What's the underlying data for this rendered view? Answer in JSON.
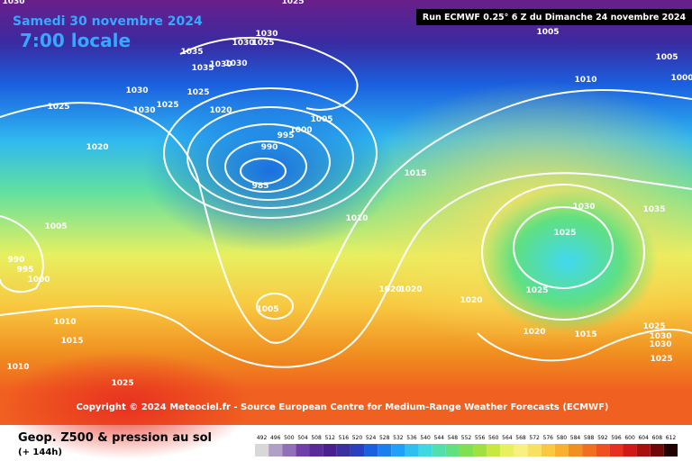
{
  "header": {
    "date": "Samedi 30 novembre 2024",
    "time": "7:00 locale",
    "run": "Run ECMWF 0.25° 6 Z du Dimanche 24 novembre 2024"
  },
  "isobar_labels": [
    "1030",
    "1025",
    "1030",
    "1030",
    "1025",
    "1005",
    "1005",
    "1000",
    "1010",
    "1035",
    "1030",
    "1035",
    "1030",
    "1030",
    "1025",
    "1030",
    "1025",
    "1025",
    "1020",
    "1005",
    "1000",
    "995",
    "990",
    "985",
    "1020",
    "1015",
    "1010",
    "1005",
    "990",
    "995",
    "1000",
    "1030",
    "1035",
    "1025",
    "1020",
    "1020",
    "1020",
    "1025",
    "1005",
    "1010",
    "1015",
    "1010",
    "1020",
    "1015",
    "1025",
    "1030",
    "1030",
    "1025",
    "1025"
  ],
  "footer": {
    "copyright": "Copyright © 2024 Meteociel.fr - Source European Centre for Medium-Range Weather Forecasts (ECMWF)",
    "title": "Geop. Z500 & pression au sol",
    "lead": "(+ 144h)"
  },
  "scale": [
    492,
    496,
    500,
    504,
    508,
    512,
    516,
    520,
    524,
    528,
    532,
    536,
    540,
    544,
    548,
    552,
    556,
    560,
    564,
    568,
    572,
    576,
    580,
    584,
    588,
    592,
    596,
    600,
    604,
    608,
    612
  ],
  "scale_colors": [
    "#d8d8d8",
    "#b0a0c8",
    "#9070b8",
    "#7040a8",
    "#5a2a98",
    "#4a2090",
    "#3a30a0",
    "#2a40c0",
    "#1a60e0",
    "#1a80f0",
    "#20a0f8",
    "#30c0f0",
    "#40d8e0",
    "#50e0b0",
    "#60e080",
    "#80e050",
    "#a0e040",
    "#c8e840",
    "#e8f060",
    "#f8f080",
    "#f8e060",
    "#f8c840",
    "#f8b030",
    "#f09020",
    "#f07020",
    "#f05020",
    "#e83020",
    "#d01818",
    "#a81010",
    "#700808",
    "#200000"
  ]
}
